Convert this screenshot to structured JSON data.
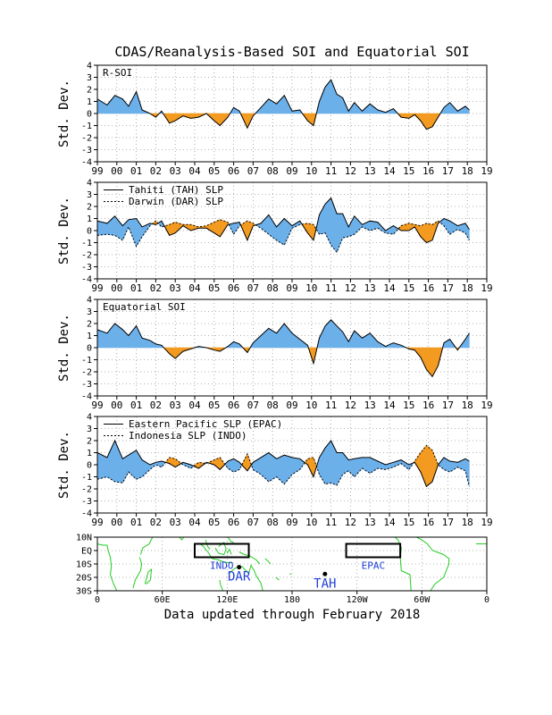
{
  "title": "CDAS/Reanalysis-Based SOI and Equatorial SOI",
  "footer": "Data updated through February 2018",
  "colors": {
    "positive": "#6cb0ea",
    "negative": "#f39a20",
    "land": "#22cc22",
    "site_label": "#1f3fd8"
  },
  "chart_data": [
    {
      "type": "area",
      "name": "R-SOI",
      "ylabel": "Std. Dev.",
      "ylim": [
        -4,
        4
      ],
      "yticks": [
        4,
        3,
        2,
        1,
        0,
        -1,
        -2,
        -3,
        -4
      ],
      "xticks": [
        "99",
        "00",
        "01",
        "02",
        "03",
        "04",
        "05",
        "06",
        "07",
        "08",
        "09",
        "10",
        "11",
        "12",
        "13",
        "14",
        "15",
        "16",
        "17",
        "18",
        "19"
      ],
      "xlim": [
        1999.0,
        2019.0
      ],
      "grid": true,
      "x": [
        1999.0,
        1999.5,
        1999.9,
        2000.3,
        2000.6,
        2001.0,
        2001.3,
        2001.7,
        2002.0,
        2002.3,
        2002.7,
        2003.0,
        2003.4,
        2003.8,
        2004.2,
        2004.6,
        2005.0,
        2005.3,
        2005.7,
        2006.0,
        2006.3,
        2006.7,
        2007.0,
        2007.4,
        2007.8,
        2008.2,
        2008.6,
        2009.0,
        2009.4,
        2009.8,
        2010.1,
        2010.4,
        2010.7,
        2011.0,
        2011.3,
        2011.6,
        2011.9,
        2012.2,
        2012.6,
        2013.0,
        2013.4,
        2013.8,
        2014.2,
        2014.6,
        2015.0,
        2015.3,
        2015.6,
        2015.9,
        2016.2,
        2016.5,
        2016.8,
        2017.1,
        2017.5,
        2017.9,
        2018.1
      ],
      "values": [
        1.2,
        0.7,
        1.5,
        1.2,
        0.6,
        1.8,
        0.3,
        0.0,
        -0.3,
        0.2,
        -0.8,
        -0.6,
        -0.2,
        -0.4,
        -0.3,
        0.0,
        -0.6,
        -1.0,
        -0.3,
        0.5,
        0.2,
        -1.2,
        -0.2,
        0.5,
        1.2,
        0.8,
        1.5,
        0.2,
        0.3,
        -0.6,
        -1.0,
        1.0,
        2.2,
        2.8,
        1.6,
        1.3,
        0.2,
        0.9,
        0.2,
        0.8,
        0.3,
        0.1,
        0.4,
        -0.3,
        -0.4,
        -0.1,
        -0.6,
        -1.3,
        -1.1,
        -0.3,
        0.5,
        0.9,
        0.2,
        0.6,
        0.3
      ]
    },
    {
      "type": "area",
      "name": "SLP",
      "legend": [
        "Tahiti (TAH) SLP",
        "Darwin (DAR) SLP"
      ],
      "ylabel": "Std. Dev.",
      "ylim": [
        -4,
        4
      ],
      "yticks": [
        4,
        3,
        2,
        1,
        0,
        -1,
        -2,
        -3,
        -4
      ],
      "xticks": [
        "99",
        "00",
        "01",
        "02",
        "03",
        "04",
        "05",
        "06",
        "07",
        "08",
        "09",
        "10",
        "11",
        "12",
        "13",
        "14",
        "15",
        "16",
        "17",
        "18",
        "19"
      ],
      "xlim": [
        1999.0,
        2019.0
      ],
      "grid": true,
      "x": [
        1999.0,
        1999.5,
        1999.9,
        2000.3,
        2000.6,
        2001.0,
        2001.3,
        2001.7,
        2002.0,
        2002.3,
        2002.7,
        2003.0,
        2003.4,
        2003.8,
        2004.2,
        2004.6,
        2005.0,
        2005.3,
        2005.7,
        2006.0,
        2006.3,
        2006.7,
        2007.0,
        2007.4,
        2007.8,
        2008.2,
        2008.6,
        2009.0,
        2009.4,
        2009.8,
        2010.1,
        2010.4,
        2010.7,
        2011.0,
        2011.3,
        2011.6,
        2011.9,
        2012.2,
        2012.6,
        2013.0,
        2013.4,
        2013.8,
        2014.2,
        2014.6,
        2015.0,
        2015.3,
        2015.6,
        2015.9,
        2016.2,
        2016.5,
        2016.8,
        2017.1,
        2017.5,
        2017.9,
        2018.1
      ],
      "series": [
        {
          "name": "Tahiti (TAH) SLP",
          "values": [
            0.8,
            0.6,
            1.2,
            0.4,
            0.9,
            1.0,
            0.3,
            0.6,
            0.5,
            0.8,
            -0.4,
            -0.2,
            0.4,
            0.0,
            0.2,
            0.2,
            -0.2,
            -0.5,
            0.5,
            0.6,
            0.7,
            -0.8,
            0.4,
            0.6,
            1.3,
            0.3,
            1.0,
            0.4,
            0.8,
            -0.2,
            -0.8,
            1.3,
            2.2,
            2.7,
            1.4,
            1.4,
            0.3,
            1.2,
            0.5,
            0.8,
            0.7,
            0.0,
            0.4,
            0.0,
            0.0,
            0.3,
            -0.5,
            -1.0,
            -0.8,
            0.6,
            1.0,
            0.8,
            0.4,
            0.6,
            0.1
          ]
        },
        {
          "name": "Darwin (DAR) SLP",
          "values": [
            -0.4,
            -0.3,
            -0.4,
            -0.8,
            0.3,
            -1.3,
            -0.5,
            0.4,
            0.8,
            0.3,
            0.5,
            0.7,
            0.5,
            0.5,
            0.3,
            0.4,
            0.7,
            0.9,
            0.7,
            -0.3,
            0.4,
            0.8,
            0.6,
            0.2,
            -0.3,
            -0.8,
            -1.2,
            0.2,
            0.5,
            0.6,
            0.5,
            -0.3,
            -0.2,
            -1.2,
            -1.8,
            -0.6,
            -0.5,
            -0.3,
            0.3,
            0.0,
            0.2,
            -0.2,
            -0.3,
            0.4,
            0.6,
            0.5,
            0.4,
            0.6,
            0.5,
            0.8,
            0.4,
            -0.3,
            0.1,
            -0.2,
            -0.8
          ]
        }
      ]
    },
    {
      "type": "area",
      "name": "Equatorial SOI",
      "ylabel": "Std. Dev.",
      "ylim": [
        -4,
        4
      ],
      "yticks": [
        4,
        3,
        2,
        1,
        0,
        -1,
        -2,
        -3,
        -4
      ],
      "xticks": [
        "99",
        "00",
        "01",
        "02",
        "03",
        "04",
        "05",
        "06",
        "07",
        "08",
        "09",
        "10",
        "11",
        "12",
        "13",
        "14",
        "15",
        "16",
        "17",
        "18",
        "19"
      ],
      "xlim": [
        1999.0,
        2019.0
      ],
      "grid": true,
      "x": [
        1999.0,
        1999.5,
        1999.9,
        2000.3,
        2000.6,
        2001.0,
        2001.3,
        2001.7,
        2002.0,
        2002.3,
        2002.7,
        2003.0,
        2003.4,
        2003.8,
        2004.2,
        2004.6,
        2005.0,
        2005.3,
        2005.7,
        2006.0,
        2006.3,
        2006.7,
        2007.0,
        2007.4,
        2007.8,
        2008.2,
        2008.6,
        2009.0,
        2009.4,
        2009.8,
        2010.1,
        2010.4,
        2010.7,
        2011.0,
        2011.3,
        2011.6,
        2011.9,
        2012.2,
        2012.6,
        2013.0,
        2013.4,
        2013.8,
        2014.2,
        2014.6,
        2015.0,
        2015.3,
        2015.6,
        2015.9,
        2016.2,
        2016.5,
        2016.8,
        2017.1,
        2017.5,
        2017.9,
        2018.1
      ],
      "values": [
        1.5,
        1.2,
        2.0,
        1.5,
        1.0,
        1.8,
        0.8,
        0.6,
        0.3,
        0.2,
        -0.5,
        -0.9,
        -0.3,
        -0.1,
        0.1,
        0.0,
        -0.2,
        -0.3,
        0.1,
        0.5,
        0.3,
        -0.4,
        0.4,
        1.0,
        1.6,
        1.2,
        2.0,
        1.2,
        0.7,
        0.2,
        -1.3,
        0.8,
        1.8,
        2.3,
        1.8,
        1.3,
        0.5,
        1.4,
        0.8,
        1.2,
        0.5,
        0.1,
        0.4,
        0.2,
        -0.1,
        -0.2,
        -0.8,
        -1.8,
        -2.4,
        -1.5,
        0.4,
        0.7,
        -0.2,
        0.7,
        1.2
      ]
    },
    {
      "type": "area",
      "name": "EPAC/INDO",
      "legend": [
        "Eastern Pacific SLP (EPAC)",
        "Indonesia SLP (INDO)"
      ],
      "ylabel": "Std. Dev.",
      "ylim": [
        -4,
        4
      ],
      "yticks": [
        4,
        3,
        2,
        1,
        0,
        -1,
        -2,
        -3,
        -4
      ],
      "xticks": [
        "99",
        "00",
        "01",
        "02",
        "03",
        "04",
        "05",
        "06",
        "07",
        "08",
        "09",
        "10",
        "11",
        "12",
        "13",
        "14",
        "15",
        "16",
        "17",
        "18",
        "19"
      ],
      "xlim": [
        1999.0,
        2019.0
      ],
      "grid": true,
      "x": [
        1999.0,
        1999.5,
        1999.9,
        2000.3,
        2000.6,
        2001.0,
        2001.3,
        2001.7,
        2002.0,
        2002.3,
        2002.7,
        2003.0,
        2003.4,
        2003.8,
        2004.2,
        2004.6,
        2005.0,
        2005.3,
        2005.7,
        2006.0,
        2006.3,
        2006.7,
        2007.0,
        2007.4,
        2007.8,
        2008.2,
        2008.6,
        2009.0,
        2009.4,
        2009.8,
        2010.1,
        2010.4,
        2010.7,
        2011.0,
        2011.3,
        2011.6,
        2011.9,
        2012.2,
        2012.6,
        2013.0,
        2013.4,
        2013.8,
        2014.2,
        2014.6,
        2015.0,
        2015.3,
        2015.6,
        2015.9,
        2016.2,
        2016.5,
        2016.8,
        2017.1,
        2017.5,
        2017.9,
        2018.1
      ],
      "series": [
        {
          "name": "Eastern Pacific SLP (EPAC)",
          "values": [
            1.0,
            0.6,
            2.0,
            0.5,
            0.8,
            1.2,
            0.4,
            0.0,
            0.2,
            0.3,
            0.1,
            -0.2,
            0.2,
            0.0,
            -0.3,
            0.2,
            0.0,
            -0.4,
            0.3,
            0.5,
            0.2,
            -0.5,
            0.2,
            0.6,
            1.0,
            0.5,
            0.8,
            0.6,
            0.5,
            0.0,
            -1.0,
            0.6,
            1.4,
            2.0,
            1.0,
            1.0,
            0.4,
            0.5,
            0.6,
            0.6,
            0.3,
            0.0,
            0.2,
            0.4,
            0.0,
            0.2,
            -0.6,
            -1.8,
            -1.4,
            0.0,
            0.6,
            0.3,
            0.2,
            0.5,
            0.3
          ]
        },
        {
          "name": "Indonesia SLP (INDO)",
          "values": [
            -1.2,
            -1.0,
            -1.4,
            -1.5,
            -0.6,
            -1.2,
            -1.0,
            -0.4,
            0.0,
            -0.2,
            0.6,
            0.5,
            0.0,
            -0.3,
            0.2,
            0.1,
            0.4,
            0.6,
            -0.3,
            -0.6,
            -0.4,
            0.9,
            -0.4,
            -0.8,
            -1.4,
            -1.0,
            -1.6,
            -0.8,
            -0.4,
            0.5,
            0.6,
            -0.8,
            -1.6,
            -1.5,
            -1.7,
            -0.8,
            -0.5,
            -1.0,
            -0.3,
            -0.7,
            -0.3,
            -0.4,
            -0.2,
            0.1,
            -0.4,
            0.3,
            1.0,
            1.6,
            1.2,
            0.0,
            -0.4,
            -0.6,
            -0.2,
            -0.5,
            -1.8
          ]
        }
      ]
    },
    {
      "type": "map",
      "name": "station-map",
      "ylabels": [
        "10N",
        "EQ",
        "10S",
        "20S",
        "30S"
      ],
      "xlabels": [
        "0",
        "60E",
        "120E",
        "180",
        "120W",
        "60W",
        "0"
      ],
      "regions": [
        {
          "label": "INDO",
          "lon": [
            90,
            140
          ],
          "lat": [
            -5,
            5
          ]
        },
        {
          "label": "EPAC",
          "lon": [
            -130,
            -80
          ],
          "lat": [
            -5,
            5
          ]
        }
      ],
      "stations": [
        {
          "label": "DAR",
          "lon": 131,
          "lat": -12.4
        },
        {
          "label": "TAH",
          "lon": -149.6,
          "lat": -17.5
        }
      ]
    }
  ]
}
